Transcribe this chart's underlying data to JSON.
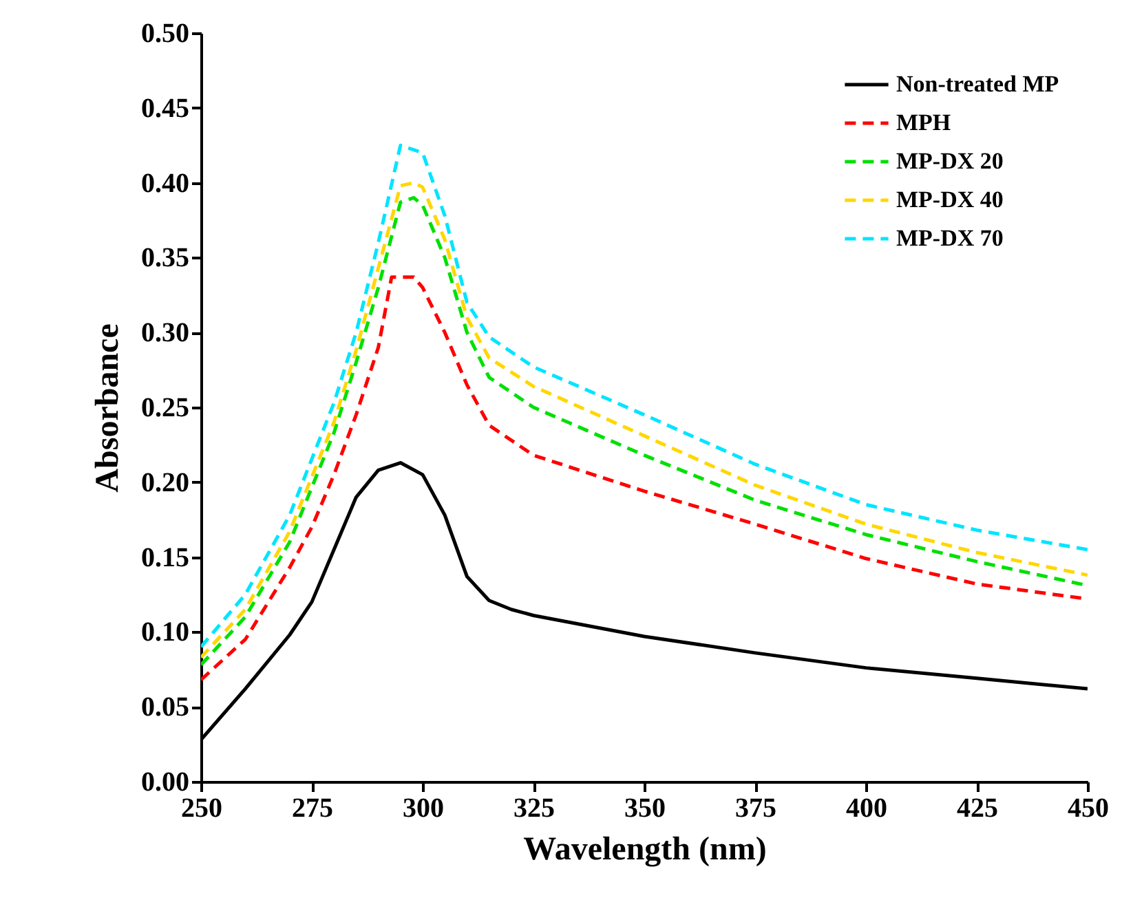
{
  "chart_data": {
    "type": "line",
    "xlabel": "Wavelength (nm)",
    "ylabel": "Absorbance",
    "xlim": [
      250,
      450
    ],
    "xticks": [
      250,
      275,
      300,
      325,
      350,
      375,
      400,
      425,
      450
    ],
    "ylim": [
      0,
      0.5
    ],
    "yticks": [
      {
        "value": 0,
        "label": "0.00"
      },
      {
        "value": 0.05,
        "label": "0.05"
      },
      {
        "value": 0.1,
        "label": "0.10"
      },
      {
        "value": 0.15,
        "label": "0.15"
      },
      {
        "value": 0.2,
        "label": "0.20"
      },
      {
        "value": 0.25,
        "label": "0.25"
      },
      {
        "value": 0.3,
        "label": "0.30"
      },
      {
        "value": 0.35,
        "label": "0.35"
      },
      {
        "value": 0.4,
        "label": "0.40"
      },
      {
        "value": 0.45,
        "label": "0.45"
      },
      {
        "value": 0.5,
        "label": "0.50"
      }
    ],
    "legend": "top right",
    "grid": false,
    "marker": "none",
    "series": [
      {
        "name": "Non-treated MP",
        "color": "#000000",
        "line_style": "solid",
        "x": [
          250,
          260,
          270,
          275,
          280,
          285,
          290,
          295,
          300,
          305,
          310,
          315,
          320,
          325,
          350,
          375,
          400,
          425,
          450
        ],
        "values": [
          0.028,
          0.062,
          0.098,
          0.12,
          0.155,
          0.19,
          0.208,
          0.213,
          0.205,
          0.178,
          0.137,
          0.121,
          0.115,
          0.111,
          0.097,
          0.086,
          0.076,
          0.069,
          0.062
        ]
      },
      {
        "name": "MPH",
        "color": "#ff0000",
        "line_style": "dashed",
        "x": [
          250,
          260,
          270,
          275,
          280,
          285,
          290,
          293,
          298,
          300,
          305,
          310,
          315,
          325,
          350,
          375,
          400,
          425,
          450
        ],
        "values": [
          0.068,
          0.095,
          0.143,
          0.17,
          0.205,
          0.245,
          0.29,
          0.337,
          0.337,
          0.33,
          0.3,
          0.265,
          0.238,
          0.218,
          0.194,
          0.172,
          0.149,
          0.132,
          0.122
        ]
      },
      {
        "name": "MP-DX 20",
        "color": "#00e000",
        "line_style": "dashed",
        "x": [
          250,
          260,
          270,
          280,
          285,
          290,
          295,
          298,
          300,
          305,
          310,
          315,
          325,
          350,
          375,
          400,
          425,
          450
        ],
        "values": [
          0.078,
          0.11,
          0.16,
          0.233,
          0.28,
          0.33,
          0.387,
          0.39,
          0.385,
          0.35,
          0.3,
          0.27,
          0.25,
          0.218,
          0.188,
          0.165,
          0.147,
          0.131
        ]
      },
      {
        "name": "MP-DX 40",
        "color": "#ffd700",
        "line_style": "dashed",
        "x": [
          250,
          260,
          270,
          280,
          285,
          290,
          295,
          298,
          300,
          305,
          310,
          315,
          325,
          350,
          375,
          400,
          425,
          450
        ],
        "values": [
          0.083,
          0.115,
          0.167,
          0.24,
          0.288,
          0.343,
          0.398,
          0.4,
          0.397,
          0.362,
          0.31,
          0.283,
          0.264,
          0.231,
          0.198,
          0.172,
          0.153,
          0.138
        ]
      },
      {
        "name": "MP-DX 70",
        "color": "#00e5ff",
        "line_style": "dashed",
        "x": [
          250,
          260,
          270,
          280,
          285,
          290,
          295,
          300,
          305,
          310,
          315,
          325,
          350,
          375,
          400,
          425,
          450
        ],
        "values": [
          0.09,
          0.125,
          0.178,
          0.253,
          0.3,
          0.36,
          0.425,
          0.42,
          0.378,
          0.32,
          0.297,
          0.277,
          0.245,
          0.212,
          0.185,
          0.168,
          0.155
        ]
      }
    ]
  }
}
